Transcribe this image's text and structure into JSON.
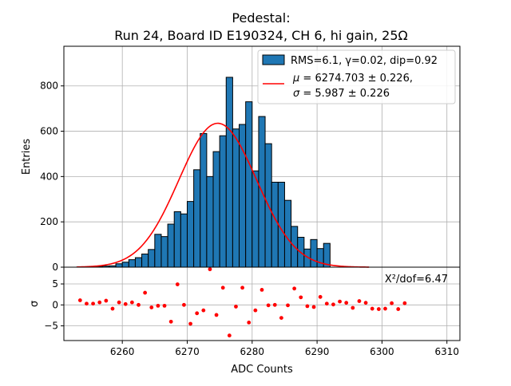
{
  "chart_data": [
    {
      "type": "bar",
      "title_line1": "Pedestal:",
      "title_line2": "Run 24, Board ID E190324, CH 6, hi gain, 25Ω",
      "ylabel": "Entries",
      "xlim": [
        6251,
        6312
      ],
      "ylim": [
        0,
        975
      ],
      "yticks": [
        0,
        200,
        400,
        600,
        800
      ],
      "grid": true,
      "bin_width": 1,
      "bin_start": 6253,
      "values": [
        1,
        1,
        2,
        3,
        5,
        6,
        15,
        22,
        33,
        42,
        58,
        78,
        145,
        135,
        190,
        245,
        235,
        290,
        430,
        590,
        400,
        510,
        580,
        838,
        610,
        630,
        730,
        425,
        665,
        545,
        375,
        375,
        295,
        180,
        132,
        80,
        122,
        82,
        105,
        0,
        0,
        0,
        0,
        0,
        0
      ],
      "fit_curve": {
        "mu": 6274.703,
        "sigma": 5.987,
        "amplitude": 635
      },
      "legend_position": "top-right",
      "legend": [
        {
          "label": "RMS=6.1, γ=0.02, dip=0.92",
          "color": "#1f77b4"
        },
        {
          "label_line1_sym": "μ",
          "label_line1": " = 6274.703 ± 0.226,",
          "label_line2_sym": "σ",
          "label_line2": " = 5.987 ± 0.226",
          "color": "#ff0000"
        }
      ],
      "bar_color": "#1f77b4",
      "fit_color": "#ff0000"
    },
    {
      "type": "scatter",
      "ylabel": "σ",
      "xlabel": "ADC Counts",
      "xlim": [
        6251,
        6312
      ],
      "ylim": [
        -8.5,
        9
      ],
      "xticks": [
        6260,
        6270,
        6280,
        6290,
        6300,
        6310
      ],
      "yticks": [
        5,
        0,
        -5
      ],
      "annotation": "X²/dof=6.47",
      "point_color": "#ff0000",
      "points": [
        [
          6253.5,
          1.1
        ],
        [
          6254.5,
          0.3
        ],
        [
          6255.5,
          0.3
        ],
        [
          6256.5,
          0.6
        ],
        [
          6257.5,
          1.0
        ],
        [
          6258.5,
          -0.9
        ],
        [
          6259.5,
          0.6
        ],
        [
          6260.5,
          0.2
        ],
        [
          6261.5,
          0.6
        ],
        [
          6262.5,
          0.0
        ],
        [
          6263.5,
          2.9
        ],
        [
          6264.5,
          -0.6
        ],
        [
          6265.5,
          -0.2
        ],
        [
          6266.5,
          -0.2
        ],
        [
          6267.5,
          -4.0
        ],
        [
          6268.5,
          4.9
        ],
        [
          6269.5,
          0.0
        ],
        [
          6270.5,
          -4.5
        ],
        [
          6271.5,
          -2.0
        ],
        [
          6272.5,
          -1.3
        ],
        [
          6273.5,
          8.5
        ],
        [
          6274.5,
          -2.4
        ],
        [
          6275.5,
          4.1
        ],
        [
          6276.5,
          -7.3
        ],
        [
          6277.5,
          -0.4
        ],
        [
          6278.5,
          4.1
        ],
        [
          6279.5,
          -4.2
        ],
        [
          6280.5,
          -1.3
        ],
        [
          6281.5,
          3.6
        ],
        [
          6282.5,
          -0.1
        ],
        [
          6283.5,
          0.0
        ],
        [
          6284.5,
          -3.1
        ],
        [
          6285.5,
          -0.1
        ],
        [
          6286.5,
          3.9
        ],
        [
          6287.5,
          1.8
        ],
        [
          6288.5,
          -0.3
        ],
        [
          6289.5,
          -0.5
        ],
        [
          6290.5,
          1.9
        ],
        [
          6291.5,
          0.3
        ],
        [
          6292.5,
          0.1
        ],
        [
          6293.5,
          0.8
        ],
        [
          6294.5,
          0.5
        ],
        [
          6295.5,
          -0.7
        ],
        [
          6296.5,
          0.9
        ],
        [
          6297.5,
          0.5
        ],
        [
          6298.5,
          -0.9
        ],
        [
          6299.5,
          -1.0
        ],
        [
          6300.5,
          -0.9
        ],
        [
          6301.5,
          0.4
        ],
        [
          6302.5,
          -1.0
        ],
        [
          6303.5,
          0.4
        ]
      ]
    }
  ]
}
